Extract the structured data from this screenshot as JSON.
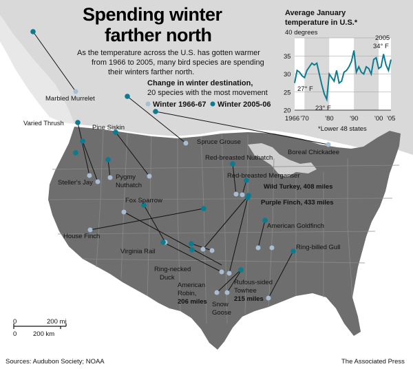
{
  "title_line1": "Spending winter",
  "title_line2": "farther north",
  "intro": [
    "As the temperature across the U.S. has gotten warmer",
    "from 1966 to 2005, many bird species are spending",
    "their winters farther north."
  ],
  "legend": {
    "title": "Change in winter destination,",
    "subtitle": "20 species with the most movement",
    "old_label": "Winter 1966-67",
    "new_label": "Winter 2005-06",
    "old_color": "#a9bdd2",
    "new_color": "#0b7b8f"
  },
  "chart_data": {
    "type": "line",
    "title": "Average January",
    "title2": "temperature in U.S.*",
    "ylabel": "40 degrees",
    "yticks": [
      "35",
      "30",
      "25",
      "20"
    ],
    "ylim": [
      20,
      40
    ],
    "xticks": [
      "1966",
      "'70",
      "'80",
      "'90",
      "'00",
      "'05"
    ],
    "xlim": [
      1966,
      2005
    ],
    "footnote": "*Lower 48 states",
    "annotations": {
      "low_1977": "27° F",
      "low_1979": "23° F",
      "year_2005": "2005",
      "high_2005": "34° F"
    },
    "shaded_periods": [
      [
        1970,
        1980
      ],
      [
        1990,
        2000
      ]
    ],
    "series": [
      {
        "x": [
          1966,
          1967,
          1968,
          1969,
          1970,
          1971,
          1972,
          1973,
          1974,
          1975,
          1976,
          1977,
          1978,
          1979,
          1980,
          1981,
          1982,
          1983,
          1984,
          1985,
          1986,
          1987,
          1988,
          1989,
          1990,
          1991,
          1992,
          1993,
          1994,
          1995,
          1996,
          1997,
          1998,
          1999,
          2000,
          2001,
          2002,
          2003,
          2004,
          2005
        ],
        "values": [
          27.5,
          31,
          30.5,
          29.5,
          29,
          31,
          32,
          33,
          32.5,
          33,
          30,
          27,
          24.5,
          23,
          30,
          29,
          28,
          31,
          27.5,
          28,
          30.5,
          31,
          32,
          33.5,
          36.5,
          30.5,
          32,
          30.5,
          30,
          32,
          31.5,
          30,
          34,
          34.5,
          31.5,
          32,
          35.5,
          32.5,
          31,
          34
        ]
      }
    ]
  },
  "species": [
    {
      "name": "Marbled Murrelet",
      "note": ""
    },
    {
      "name": "Varied Thrush",
      "note": ""
    },
    {
      "name": "Pine Siskin",
      "note": ""
    },
    {
      "name": "Spruce Grouse",
      "note": ""
    },
    {
      "name": "Boreal Chickadee",
      "note": ""
    },
    {
      "name": "Red-breasted Nuthatch",
      "note": ""
    },
    {
      "name": "Red-breasted Merganser",
      "note": ""
    },
    {
      "name": "Wild Turkey, 408 miles",
      "note": ""
    },
    {
      "name": "Purple Finch, 433 miles",
      "note": ""
    },
    {
      "name": "American Goldfinch",
      "note": ""
    },
    {
      "name": "Steller's Jay",
      "note": ""
    },
    {
      "name": "Pygmy",
      "note": "Nuthatch"
    },
    {
      "name": "Fox Sparrow",
      "note": ""
    },
    {
      "name": "House Finch",
      "note": ""
    },
    {
      "name": "Virginia Rail",
      "note": ""
    },
    {
      "name": "Ring-necked",
      "note": "Duck"
    },
    {
      "name": "Ring-billed Gull",
      "note": ""
    },
    {
      "name": "American",
      "note": "Robin,"
    },
    {
      "name": "206 miles",
      "note": ""
    },
    {
      "name": "Rufous-sided",
      "note": "Towhee"
    },
    {
      "name": "215 miles",
      "note": ""
    },
    {
      "name": "Snow",
      "note": "Goose"
    }
  ],
  "scale": {
    "zero": "0",
    "mi": "200 mi",
    "km": "200 km"
  },
  "footer": {
    "sources": "Sources: Audubon Society; NOAA",
    "credit": "The Associated Press"
  }
}
